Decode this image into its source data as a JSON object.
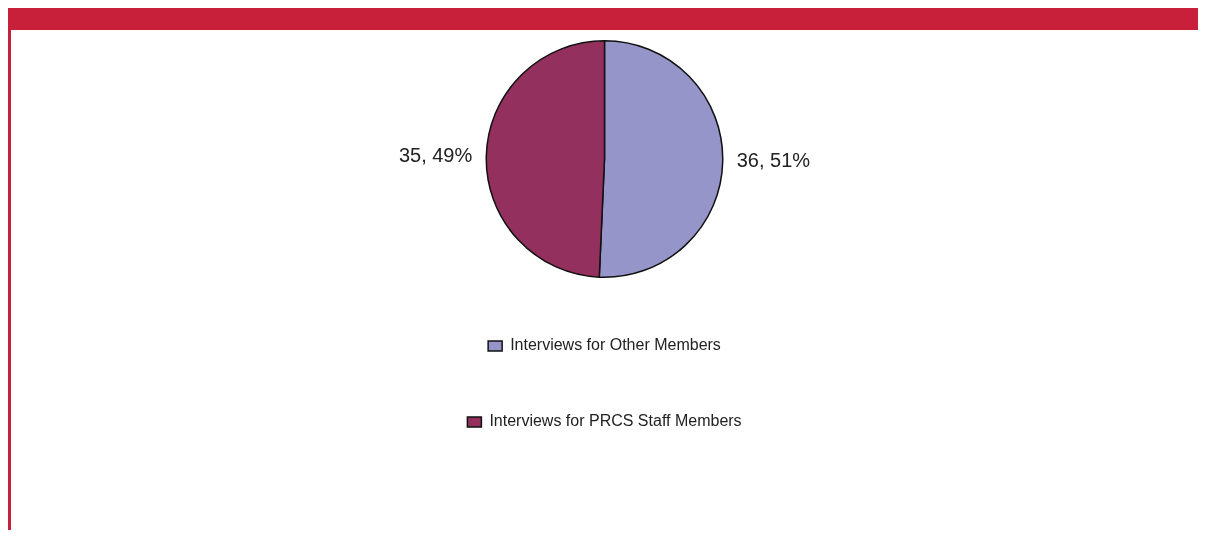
{
  "chart_data": {
    "type": "pie",
    "categories": [
      "Interviews for Other Members",
      "Interviews for PRCS Staff Members"
    ],
    "values": [
      36,
      35
    ],
    "colors": [
      "#9595c9",
      "#93305d"
    ],
    "value_labels": [
      "36, 51%",
      "35, 49%"
    ],
    "legend": "bottom"
  }
}
